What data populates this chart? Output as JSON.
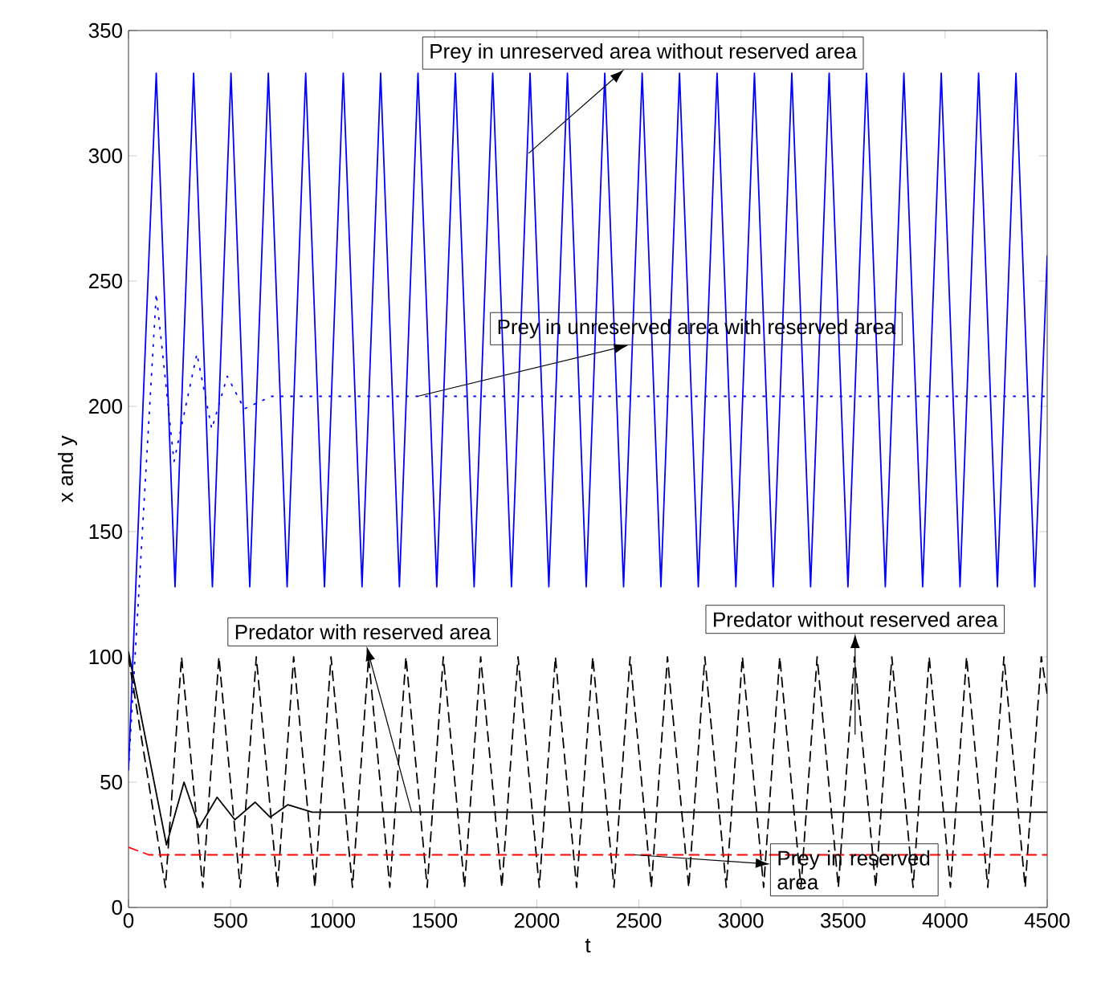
{
  "chart_data": {
    "type": "line",
    "xlabel": "t",
    "ylabel": "x and y",
    "xlim": [
      0,
      4500
    ],
    "ylim": [
      0,
      350
    ],
    "xticks": [
      0,
      500,
      1000,
      1500,
      2000,
      2500,
      3000,
      3500,
      4000,
      4500
    ],
    "yticks": [
      0,
      50,
      100,
      150,
      200,
      250,
      300,
      350
    ],
    "grid": false,
    "marker": "none",
    "series": [
      {
        "color": "#0000ff",
        "line_style": "solid",
        "x": [
          0,
          136,
          228,
          319,
          411,
          502,
          594,
          685,
          777,
          868,
          960,
          1052,
          1144,
          1235,
          1327,
          1418,
          1510,
          1601,
          1693,
          1784,
          1876,
          1967,
          2059,
          2150,
          2242,
          2333,
          2425,
          2516,
          2608,
          2699,
          2791,
          2883,
          2975,
          3066,
          3158,
          3249,
          3341,
          3432,
          3524,
          3615,
          3707,
          3798,
          3890,
          3981,
          4073,
          4164,
          4256,
          4347,
          4439,
          4500
        ],
        "values": [
          55,
          333,
          128,
          333,
          128,
          333,
          128,
          333,
          128,
          333,
          128,
          333,
          128,
          333,
          128,
          333,
          128,
          333,
          128,
          333,
          128,
          333,
          128,
          333,
          128,
          333,
          128,
          333,
          128,
          333,
          128,
          333,
          128,
          333,
          128,
          333,
          128,
          333,
          128,
          333,
          128,
          333,
          128,
          333,
          128,
          333,
          128,
          333,
          128,
          260
        ]
      },
      {
        "color": "#0000ff",
        "line_style": "dotted",
        "x": [
          0,
          136,
          223,
          335,
          408,
          484,
          567,
          700,
          4500
        ],
        "values": [
          55,
          245,
          178,
          221,
          191,
          212,
          199,
          204,
          204
        ]
      },
      {
        "color": "#000000",
        "line_style": "dashed",
        "x": [
          0,
          181,
          260,
          364,
          443,
          547,
          626,
          730,
          809,
          913,
          992,
          1097,
          1176,
          1280,
          1359,
          1463,
          1542,
          1646,
          1725,
          1829,
          1908,
          2012,
          2091,
          2195,
          2274,
          2378,
          2457,
          2561,
          2640,
          2744,
          2823,
          2928,
          3007,
          3111,
          3190,
          3294,
          3373,
          3477,
          3556,
          3660,
          3739,
          3843,
          3922,
          4026,
          4105,
          4209,
          4288,
          4392,
          4471,
          4500
        ],
        "values": [
          100,
          8,
          100,
          8,
          100,
          8,
          100,
          8,
          100,
          8,
          100,
          8,
          100,
          8,
          100,
          8,
          100,
          8,
          100,
          8,
          100,
          8,
          100,
          8,
          100,
          8,
          100,
          8,
          100,
          8,
          100,
          8,
          100,
          8,
          100,
          8,
          100,
          8,
          100,
          8,
          100,
          8,
          100,
          8,
          100,
          8,
          100,
          8,
          100,
          85
        ]
      },
      {
        "color": "#000000",
        "line_style": "solid",
        "x": [
          0,
          186,
          272,
          347,
          434,
          521,
          620,
          694,
          781,
          900,
          4500
        ],
        "values": [
          102,
          25,
          50,
          32,
          44,
          35,
          42,
          36,
          41,
          38,
          38
        ]
      },
      {
        "color": "#ff0000",
        "line_style": "dashed",
        "x": [
          0,
          100,
          4500
        ],
        "values": [
          24,
          21,
          21
        ]
      }
    ],
    "annotations": [
      {
        "text": "Prey in unreserved area without reserved area",
        "x": 1960,
        "y": 301
      },
      {
        "text": "Prey in unreserved area with reserved area",
        "x": 1416,
        "y": 204
      },
      {
        "text": "Predator with reserved area",
        "x": 1387,
        "y": 38
      },
      {
        "text": "Predator without reserved area",
        "x": 3559,
        "y": 69
      },
      {
        "text": "Prey in reserved area",
        "x": 2480,
        "y": 21
      }
    ]
  }
}
